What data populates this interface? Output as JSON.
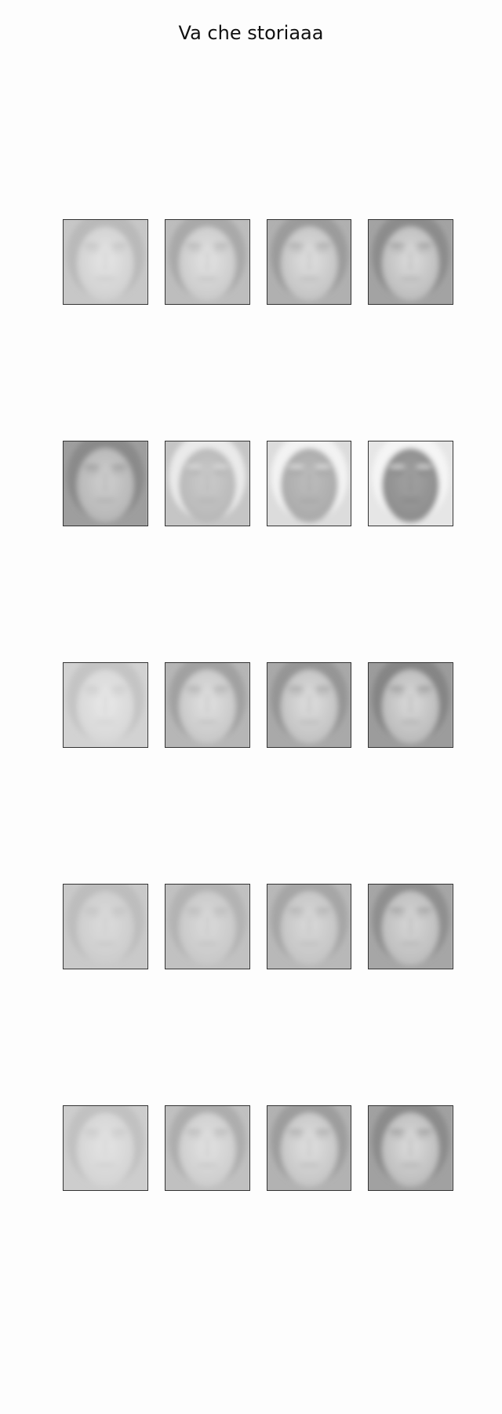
{
  "title": "Va che storiaaa",
  "grid": {
    "rows": 5,
    "cols": 4,
    "tiles": [
      [
        {
          "bg": "#c7c7c7",
          "skin": "#e6e6e6",
          "hair": "#b9b9b9",
          "shadow": "#cfcfcf"
        },
        {
          "bg": "#bdbdbd",
          "skin": "#e3e3e3",
          "hair": "#a9a9a9",
          "shadow": "#c9c9c9"
        },
        {
          "bg": "#b0b0b0",
          "skin": "#e0e0e0",
          "hair": "#9b9b9b",
          "shadow": "#c2c2c2"
        },
        {
          "bg": "#a3a3a3",
          "skin": "#dcdcdc",
          "hair": "#8c8c8c",
          "shadow": "#bbbbbb"
        }
      ],
      [
        {
          "bg": "#9e9e9e",
          "skin": "#cfcfcf",
          "hair": "#8a8a8a",
          "shadow": "#b5b5b5"
        },
        {
          "bg": "#c5c5c5",
          "skin": "#cbcbcb",
          "hair": "#eaeaea",
          "shadow": "#b7b7b7"
        },
        {
          "bg": "#dcdcdc",
          "skin": "#bdbdbd",
          "hair": "#f3f3f3",
          "shadow": "#a9a9a9"
        },
        {
          "bg": "#e6e6e6",
          "skin": "#a2a2a2",
          "hair": "#f5f5f5",
          "shadow": "#8c8c8c"
        }
      ],
      [
        {
          "bg": "#d2d2d2",
          "skin": "#e8e8e8",
          "hair": "#c4c4c4",
          "shadow": "#d6d6d6"
        },
        {
          "bg": "#b6b6b6",
          "skin": "#e1e1e1",
          "hair": "#a1a1a1",
          "shadow": "#c6c6c6"
        },
        {
          "bg": "#a9a9a9",
          "skin": "#dfdfdf",
          "hair": "#959595",
          "shadow": "#c0c0c0"
        },
        {
          "bg": "#9c9c9c",
          "skin": "#dadada",
          "hair": "#858585",
          "shadow": "#b9b9b9"
        }
      ],
      [
        {
          "bg": "#c9c9c9",
          "skin": "#dcdcdc",
          "hair": "#bdbdbd",
          "shadow": "#cbcbcb"
        },
        {
          "bg": "#c1c1c1",
          "skin": "#dadada",
          "hair": "#b3b3b3",
          "shadow": "#c7c7c7"
        },
        {
          "bg": "#b8b8b8",
          "skin": "#d9d9d9",
          "hair": "#a6a6a6",
          "shadow": "#c3c3c3"
        },
        {
          "bg": "#a6a6a6",
          "skin": "#d6d6d6",
          "hair": "#8f8f8f",
          "shadow": "#bcbcbc"
        }
      ],
      [
        {
          "bg": "#cdcdcd",
          "skin": "#e4e4e4",
          "hair": "#c1c1c1",
          "shadow": "#d3d3d3"
        },
        {
          "bg": "#c0c0c0",
          "skin": "#e2e2e2",
          "hair": "#adadad",
          "shadow": "#cccccc"
        },
        {
          "bg": "#b2b2b2",
          "skin": "#e0e0e0",
          "hair": "#9d9d9d",
          "shadow": "#c4c4c4"
        },
        {
          "bg": "#a1a1a1",
          "skin": "#dcdcdc",
          "hair": "#8b8b8b",
          "shadow": "#bbbbbb"
        }
      ]
    ]
  }
}
